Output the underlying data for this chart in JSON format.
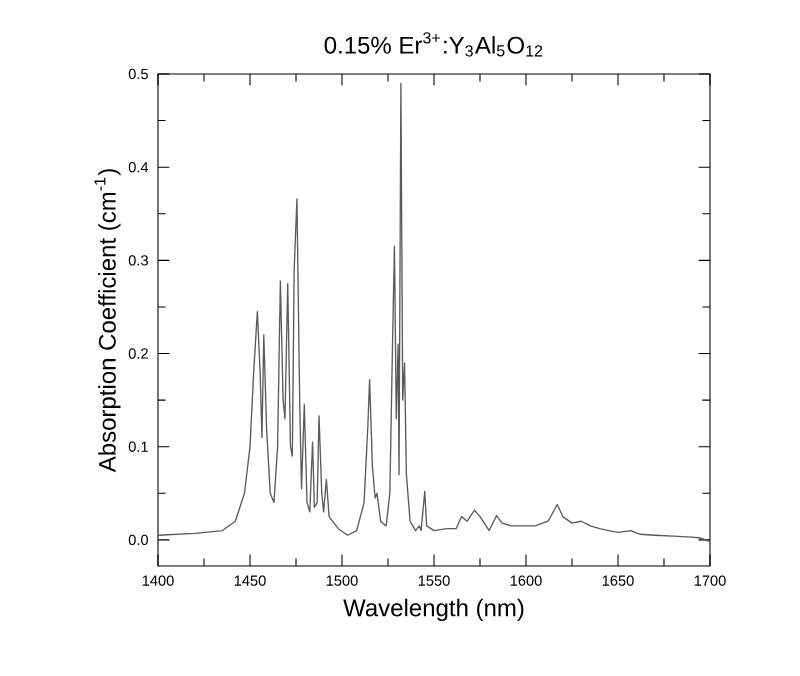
{
  "chart_data": {
    "type": "line",
    "title": "0.15% Er$^{3+}$:Y$_{3}$Al$_{5}$O$_{12}$",
    "xlabel": "Wavelength (nm)",
    "ylabel": "Absorption Coefficient (cm$^{-1}$)",
    "xlim": [
      1400,
      1700
    ],
    "ylim": [
      -0.028,
      0.5
    ],
    "xticks": [
      1400,
      1450,
      1500,
      1550,
      1600,
      1650,
      1700
    ],
    "yticks": [
      {
        "value": 0,
        "label": "0.0"
      },
      0.1,
      0.2,
      0.3,
      0.4,
      0.5
    ],
    "grid": false,
    "marker": "none",
    "line_style": "solid",
    "series": [
      {
        "color": "#5a5a5a",
        "x": [
          1400,
          1420,
          1435,
          1442,
          1447,
          1450,
          1452,
          1454,
          1455.5,
          1456.5,
          1457.5,
          1459,
          1461,
          1463,
          1465,
          1466.5,
          1468,
          1469,
          1470.5,
          1472,
          1473,
          1474,
          1475.5,
          1477,
          1478,
          1479.5,
          1481,
          1482.5,
          1484,
          1485,
          1486.5,
          1487.5,
          1489,
          1490,
          1491.5,
          1493,
          1498,
          1503,
          1508,
          1512,
          1514,
          1515,
          1516.5,
          1518,
          1519,
          1521,
          1524,
          1526,
          1527.5,
          1528.5,
          1529.5,
          1530.5,
          1531,
          1532,
          1533,
          1534,
          1535,
          1537,
          1540,
          1542,
          1543,
          1545,
          1546,
          1550,
          1557,
          1562,
          1565,
          1568,
          1572,
          1575,
          1580,
          1584,
          1587,
          1592,
          1600,
          1605,
          1612,
          1617,
          1620,
          1625,
          1630,
          1635,
          1640,
          1645,
          1650,
          1657,
          1662,
          1670,
          1680,
          1690,
          1695,
          1700
        ],
        "values": [
          0.005,
          0.007,
          0.01,
          0.02,
          0.05,
          0.1,
          0.18,
          0.245,
          0.18,
          0.11,
          0.22,
          0.12,
          0.05,
          0.04,
          0.1,
          0.278,
          0.15,
          0.13,
          0.275,
          0.1,
          0.09,
          0.29,
          0.366,
          0.15,
          0.055,
          0.145,
          0.04,
          0.03,
          0.105,
          0.035,
          0.04,
          0.133,
          0.05,
          0.03,
          0.065,
          0.025,
          0.012,
          0.005,
          0.01,
          0.04,
          0.12,
          0.172,
          0.08,
          0.045,
          0.05,
          0.02,
          0.015,
          0.05,
          0.215,
          0.315,
          0.13,
          0.21,
          0.07,
          0.49,
          0.15,
          0.19,
          0.07,
          0.02,
          0.01,
          0.015,
          0.01,
          0.052,
          0.015,
          0.01,
          0.012,
          0.012,
          0.025,
          0.02,
          0.032,
          0.025,
          0.01,
          0.026,
          0.018,
          0.015,
          0.015,
          0.015,
          0.02,
          0.038,
          0.025,
          0.018,
          0.02,
          0.015,
          0.012,
          0.01,
          0.008,
          0.01,
          0.006,
          0.005,
          0.004,
          0.003,
          0.002,
          -0.002
        ]
      }
    ]
  }
}
